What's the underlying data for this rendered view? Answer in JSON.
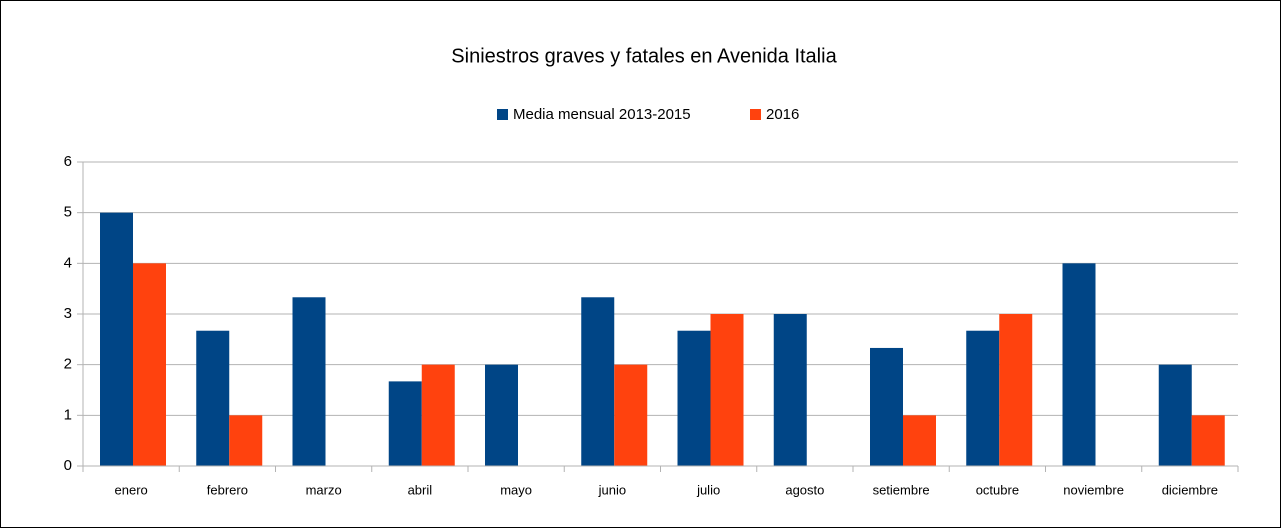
{
  "chart_data": {
    "type": "bar",
    "title": "Siniestros graves y fatales en Avenida Italia",
    "categories": [
      "enero",
      "febrero",
      "marzo",
      "abril",
      "mayo",
      "junio",
      "julio",
      "agosto",
      "setiembre",
      "octubre",
      "noviembre",
      "diciembre"
    ],
    "series": [
      {
        "name": "Media mensual 2013-2015",
        "color": "#004586",
        "values": [
          5,
          2.67,
          3.33,
          1.67,
          2,
          3.33,
          2.67,
          3,
          2.33,
          2.67,
          4,
          2
        ]
      },
      {
        "name": "2016",
        "color": "#ff420e",
        "values": [
          4,
          1,
          0,
          2,
          0,
          2,
          3,
          0,
          1,
          3,
          0,
          1
        ]
      }
    ],
    "ylim": [
      0,
      6
    ],
    "yticks": [
      0,
      1,
      2,
      3,
      4,
      5,
      6
    ],
    "grid": true,
    "legend": "top"
  }
}
